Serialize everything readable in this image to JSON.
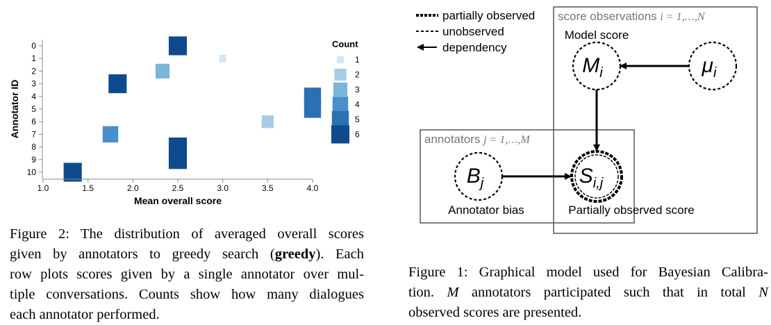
{
  "chart_data": {
    "type": "heatmap",
    "xlabel": "Mean overall score",
    "ylabel": "Annotator ID",
    "x_ticks": [
      "1.0",
      "1.5",
      "2.0",
      "2.5",
      "3.0",
      "3.5",
      "4.0"
    ],
    "y_ticks": [
      "0",
      "1",
      "2",
      "3",
      "4",
      "5",
      "6",
      "7",
      "8",
      "9",
      "10"
    ],
    "xlim": [
      1.0,
      4.0
    ],
    "ylim": [
      0,
      10
    ],
    "legend_title": "Count",
    "legend": [
      {
        "label": "1",
        "color": "#d6e6f5"
      },
      {
        "label": "2",
        "color": "#a8cce6"
      },
      {
        "label": "3",
        "color": "#7db4da"
      },
      {
        "label": "4",
        "color": "#4a8fc9"
      },
      {
        "label": "5",
        "color": "#2b70b3"
      },
      {
        "label": "6",
        "color": "#0f4a8c"
      }
    ],
    "points": [
      {
        "annotator": 0,
        "score": 2.5,
        "count": 6
      },
      {
        "annotator": 1,
        "score": 3.0,
        "count": 1
      },
      {
        "annotator": 2,
        "score": 2.33,
        "count": 3
      },
      {
        "annotator": 3,
        "score": 1.83,
        "count": 6
      },
      {
        "annotator": 4,
        "score": 4.0,
        "count": 5
      },
      {
        "annotator": 5,
        "score": 4.0,
        "count": 5
      },
      {
        "annotator": 6,
        "score": 3.5,
        "count": 2
      },
      {
        "annotator": 7,
        "score": 1.75,
        "count": 4
      },
      {
        "annotator": 8,
        "score": 2.5,
        "count": 6
      },
      {
        "annotator": 9,
        "score": 2.5,
        "count": 6
      },
      {
        "annotator": 10,
        "score": 1.33,
        "count": 6
      }
    ]
  },
  "fig2_caption": {
    "lines": [
      "Figure 2:   The distribution of averaged overall scores",
      [
        "given by annotators to greedy search (",
        "greedy",
        ").  Each"
      ],
      "row plots scores given by a single annotator over mul-",
      "tiple conversations. Counts show how many dialogues",
      "each annotator performed."
    ]
  },
  "diagram": {
    "legend": {
      "partial": "partially observed",
      "unobserved": "unobserved",
      "dependency": "dependency"
    },
    "plate_scores_label": "score observations",
    "plate_scores_index": "i = 1,…,N",
    "plate_annotators_label": "annotators",
    "plate_annotators_index": "j = 1,…,M",
    "nodes": {
      "M": {
        "symbol": "M",
        "sub": "i",
        "caption": "Model score"
      },
      "mu": {
        "symbol": "μ",
        "sub": "i"
      },
      "B": {
        "symbol": "B",
        "sub": "j",
        "caption": "Annotator bias"
      },
      "S": {
        "symbol": "S",
        "sub": "i,j",
        "caption": "Partially observed score"
      }
    }
  },
  "fig1_caption": {
    "line1": "Figure 1: Graphical model used for Bayesian Calibra-",
    "line2_parts": [
      "tion.  ",
      "M",
      " annotators participated such that in total ",
      "N"
    ],
    "line3": "observed scores are presented."
  }
}
